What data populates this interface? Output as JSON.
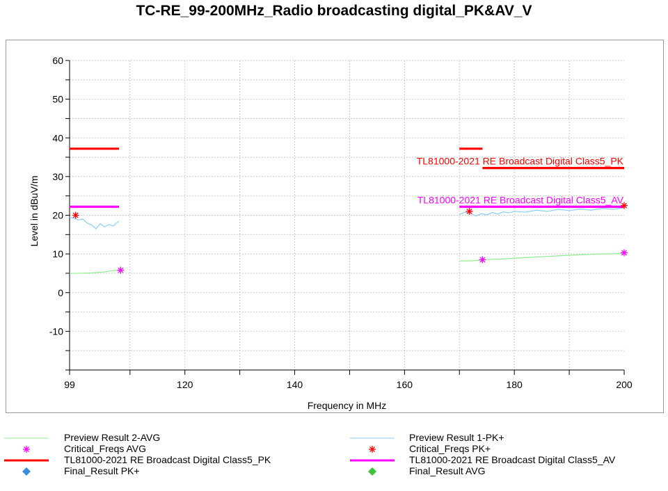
{
  "colors": {
    "preview_avg": "#90ee90",
    "preview_pk": "#87cefa",
    "critical_avg": "#ff00ff",
    "critical_pk": "#ff0000",
    "limit_pk": "#ff0000",
    "limit_av": "#ff00ff",
    "final_pk": "#3a8fdc",
    "final_avg": "#3cc43c"
  },
  "chart_data": {
    "type": "line",
    "title": "TC-RE_99-200MHz_Radio broadcasting digital_PK&AV_V",
    "xlabel": "Frequency in MHz",
    "ylabel": "Level in dBuV/m",
    "xlim": [
      99,
      200
    ],
    "ylim": [
      -20,
      60
    ],
    "x_ticks": [
      99,
      120,
      140,
      160,
      180,
      200
    ],
    "y_ticks": [
      60,
      50,
      40,
      30,
      20,
      10,
      0,
      -10
    ],
    "grid": true,
    "series": [
      {
        "name": "TL81000-2021 RE Broadcast Digital  Class5_PK",
        "kind": "limit",
        "segments": [
          [
            [
              99,
              37.2
            ],
            [
              108,
              37.2
            ]
          ],
          [
            [
              170,
              37.2
            ],
            [
              174.2,
              37.2
            ]
          ],
          [
            [
              174.2,
              32.2
            ],
            [
              200,
              32.2
            ]
          ]
        ]
      },
      {
        "name": "TL81000-2021 RE Broadcast Digital  Class5_AV",
        "kind": "limit",
        "segments": [
          [
            [
              99,
              22.2
            ],
            [
              108,
              22.2
            ]
          ],
          [
            [
              170,
              22.2
            ],
            [
              200,
              22.2
            ]
          ]
        ]
      },
      {
        "name": "Preview Result 1-PK+",
        "kind": "trace",
        "segments": [
          [
            [
              99,
              19.5
            ],
            [
              99.8,
              19.2
            ],
            [
              100.6,
              18.8
            ],
            [
              101.4,
              19
            ],
            [
              102.2,
              18
            ],
            [
              103,
              17.5
            ],
            [
              103.8,
              16.5
            ],
            [
              104.6,
              17.8
            ],
            [
              105.4,
              17
            ],
            [
              106.2,
              17.6
            ],
            [
              107,
              17.2
            ],
            [
              107.5,
              18
            ],
            [
              108,
              18.4
            ]
          ],
          [
            [
              170,
              20.2
            ],
            [
              171,
              20.8
            ],
            [
              172,
              20.5
            ],
            [
              173,
              19.8
            ],
            [
              174,
              20.4
            ],
            [
              175,
              20.1
            ],
            [
              176,
              20.7
            ],
            [
              177,
              20.3
            ],
            [
              178,
              20.9
            ],
            [
              179,
              20.6
            ],
            [
              180,
              21
            ],
            [
              182,
              20.8
            ],
            [
              184,
              21.3
            ],
            [
              186,
              21
            ],
            [
              188,
              21.5
            ],
            [
              190,
              21.2
            ],
            [
              192,
              21.6
            ],
            [
              194,
              21.3
            ],
            [
              196,
              21.8
            ],
            [
              198,
              21.5
            ],
            [
              200,
              22
            ]
          ]
        ]
      },
      {
        "name": "Preview Result 2-AVG",
        "kind": "trace",
        "segments": [
          [
            [
              99,
              5
            ],
            [
              101,
              5
            ],
            [
              103,
              5.1
            ],
            [
              105,
              5.3
            ],
            [
              107,
              5.7
            ],
            [
              108,
              5.8
            ]
          ],
          [
            [
              170,
              8.2
            ],
            [
              172,
              8.2
            ],
            [
              174,
              8.4
            ],
            [
              176,
              8.6
            ],
            [
              178,
              8.7
            ],
            [
              180,
              8.9
            ],
            [
              184,
              9.2
            ],
            [
              188,
              9.5
            ],
            [
              192,
              9.8
            ],
            [
              196,
              10
            ],
            [
              200,
              10.1
            ]
          ]
        ]
      },
      {
        "name": "Critical_Freqs PK+",
        "kind": "marker",
        "points": [
          [
            100.1,
            20
          ],
          [
            171.8,
            21
          ],
          [
            200,
            22.5
          ]
        ]
      },
      {
        "name": "Critical_Freqs AVG",
        "kind": "marker",
        "points": [
          [
            108.3,
            5.8
          ],
          [
            174.2,
            8.5
          ],
          [
            200,
            10.3
          ]
        ]
      }
    ],
    "annotations": [
      {
        "text": "TL81000-2021 RE Broadcast Digital  Class5_PK",
        "x": 200,
        "y": 32.2,
        "series": "limit_pk"
      },
      {
        "text": "TL81000-2021 RE Broadcast Digital  Class5_AV",
        "x": 200,
        "y": 22.2,
        "series": "limit_av"
      }
    ],
    "legend": {
      "placement": "bottom",
      "entries": [
        {
          "label": "Preview Result 2-AVG",
          "symbol": "thin-line",
          "color_key": "preview_avg"
        },
        {
          "label": "Preview Result 1-PK+",
          "symbol": "thin-line",
          "color_key": "preview_pk"
        },
        {
          "label": "Critical_Freqs AVG",
          "symbol": "asterisk",
          "color_key": "critical_avg"
        },
        {
          "label": "Critical_Freqs PK+",
          "symbol": "asterisk",
          "color_key": "critical_pk"
        },
        {
          "label": "TL81000-2021 RE Broadcast Digital  Class5_PK",
          "symbol": "thick-line",
          "color_key": "limit_pk"
        },
        {
          "label": "TL81000-2021 RE Broadcast Digital  Class5_AV",
          "symbol": "thick-line",
          "color_key": "limit_av"
        },
        {
          "label": "Final_Result PK+",
          "symbol": "diamond",
          "color_key": "final_pk"
        },
        {
          "label": "Final_Result AVG",
          "symbol": "diamond",
          "color_key": "final_avg"
        }
      ]
    }
  }
}
